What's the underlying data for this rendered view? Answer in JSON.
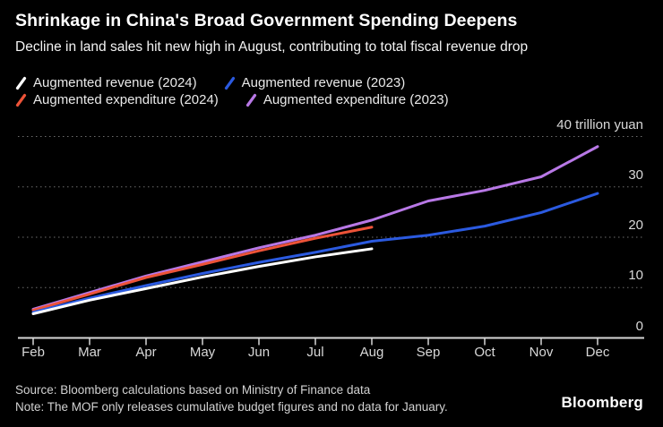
{
  "chart_data": {
    "type": "line",
    "title": "Shrinkage in China's Broad Government Spending Deepens",
    "subtitle": "Decline in land sales hit new high in August, contributing to total fiscal revenue drop",
    "x_categories": [
      "Feb",
      "Mar",
      "Apr",
      "May",
      "Jun",
      "Jul",
      "Aug",
      "Sep",
      "Oct",
      "Nov",
      "Dec"
    ],
    "series": [
      {
        "name": "Augmented revenue (2024)",
        "color": "#ffffff",
        "values": [
          4.8,
          7.5,
          9.8,
          12.1,
          14.2,
          16.1,
          17.7
        ]
      },
      {
        "name": "Augmented revenue (2023)",
        "color": "#2b5ae0",
        "values": [
          5.1,
          7.9,
          10.4,
          12.8,
          15.0,
          17.0,
          19.2,
          20.4,
          22.2,
          24.9,
          28.7
        ]
      },
      {
        "name": "Augmented expenditure (2024)",
        "color": "#ed5338",
        "values": [
          5.5,
          8.7,
          12.0,
          14.6,
          17.3,
          19.8,
          22.0
        ]
      },
      {
        "name": "Augmented expenditure (2023)",
        "color": "#b878e6",
        "values": [
          5.7,
          9.0,
          12.3,
          15.1,
          17.9,
          20.4,
          23.4,
          27.2,
          29.3,
          32.0,
          38.0
        ]
      }
    ],
    "ylim": [
      0,
      40
    ],
    "yticks": [
      0,
      10,
      20,
      30,
      40
    ],
    "y_top_label": "40 trillion yuan",
    "xlabel": "",
    "ylabel": "trillion yuan",
    "grid": "horizontal-dotted",
    "legend_position": "top-left",
    "legend_rows": [
      [
        0,
        1
      ],
      [
        2,
        3
      ]
    ]
  },
  "footer": {
    "source": "Source: Bloomberg calculations based on Ministry of Finance data",
    "note": "Note: The MOF only releases cumulative budget figures and no data for January.",
    "brand": "Bloomberg"
  }
}
